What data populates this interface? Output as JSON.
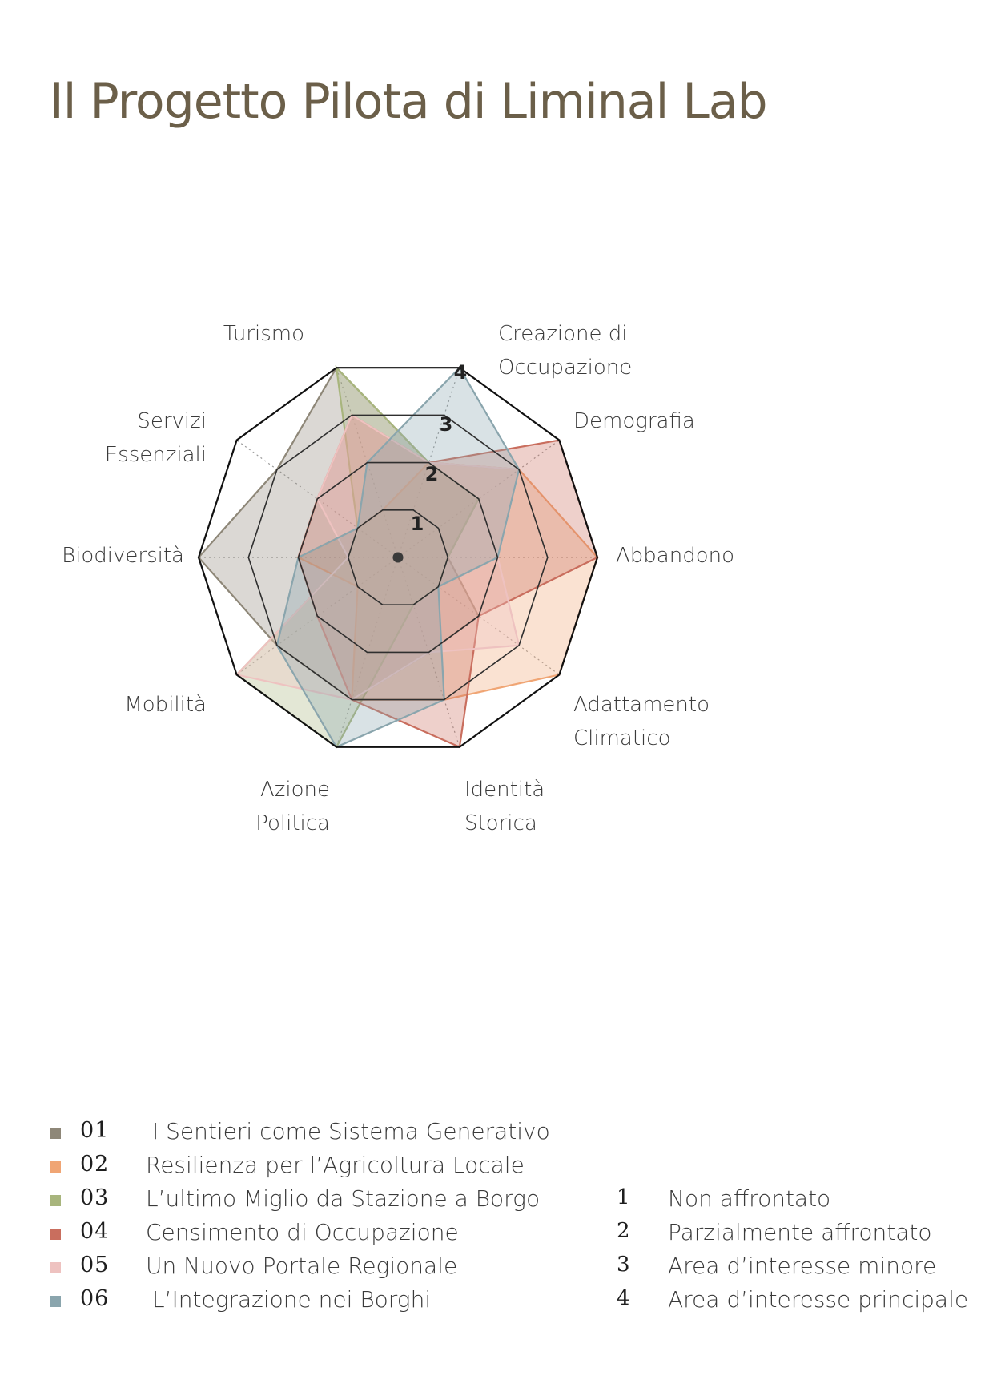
{
  "page": {
    "title": "Il Progetto Pilota di Liminal Lab"
  },
  "chart_data": {
    "type": "radar",
    "axes": [
      "Creazione di Occupazione",
      "Demografia",
      "Abbandono",
      "Adattamento Climatico",
      "Identità Storica",
      "Azione Politica",
      "Mobilità",
      "Biodiversità",
      "Servizi Essenziali",
      "Turismo"
    ],
    "axis_label_lines": [
      [
        "Creazione di",
        "Occupazione"
      ],
      [
        "Demografia"
      ],
      [
        "Abbandono"
      ],
      [
        "Adattamento",
        "Climatico"
      ],
      [
        "Identità",
        "Storica"
      ],
      [
        "Azione",
        "Politica"
      ],
      [
        "Mobilità"
      ],
      [
        "Biodiversità"
      ],
      [
        "Servizi",
        "Essenziali"
      ],
      [
        "Turismo"
      ]
    ],
    "range": [
      0,
      4
    ],
    "ring_labels": [
      "1",
      "2",
      "3",
      "4"
    ],
    "series": [
      {
        "code": "01",
        "name": "I Sentieri come Sistema Generativo",
        "color": "#8e8778",
        "values": [
          2,
          2,
          1,
          2,
          2,
          3,
          3,
          4,
          3,
          4
        ]
      },
      {
        "code": "02",
        "name": "Resilienza per l’Agricoltura Locale",
        "color": "#f0a574",
        "values": [
          2,
          3,
          4,
          4,
          3,
          3,
          1,
          2,
          1,
          1
        ]
      },
      {
        "code": "03",
        "name": "L’ultimo Miglio da Stazione a Borgo",
        "color": "#a8b57d",
        "values": [
          2,
          2,
          1,
          1,
          1,
          4,
          4,
          1,
          1,
          4
        ]
      },
      {
        "code": "04",
        "name": "Censimento di Occupazione",
        "color": "#c96e5e",
        "values": [
          2,
          4,
          4,
          2,
          4,
          3,
          2,
          2,
          2,
          3
        ]
      },
      {
        "code": "05",
        "name": "Un Nuovo Portale Regionale",
        "color": "#eec2c0",
        "values": [
          2,
          3,
          2,
          3,
          2,
          3,
          4,
          1,
          2,
          3
        ]
      },
      {
        "code": "06",
        "name": "L’Integrazione nei Borghi",
        "color": "#8aa5ad",
        "values": [
          4,
          3,
          2,
          1,
          3,
          4,
          3,
          2,
          1,
          2
        ]
      }
    ]
  },
  "scale": [
    {
      "num": "1",
      "desc": "Non affrontato"
    },
    {
      "num": "2",
      "desc": "Parzialmente affrontato"
    },
    {
      "num": "3",
      "desc": "Area d’interesse minore"
    },
    {
      "num": "4",
      "desc": "Area d’interesse principale"
    }
  ]
}
